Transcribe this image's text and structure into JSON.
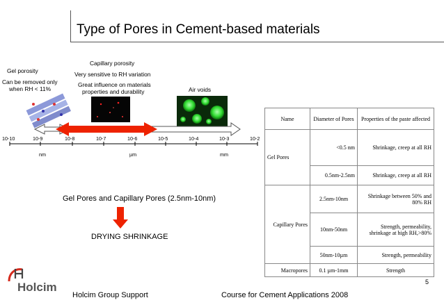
{
  "slide": {
    "title": "Type of Pores in Cement-based materials",
    "page_number": "5"
  },
  "diagram": {
    "gel": {
      "title": "Gel porosity",
      "line1": "Can be removed only",
      "line2": "when RH < 11%"
    },
    "capillary": {
      "title": "Capillary porosity",
      "line1": "Very sensitive to RH variation",
      "line2": "Great influence on materials",
      "line3": "properties and durability"
    },
    "air": {
      "title": "Air voids"
    },
    "ticks": [
      "10-10",
      "10-9",
      "10-8",
      "10-7",
      "10-6",
      "10-5",
      "10-4",
      "10-3",
      "10-2"
    ],
    "units": {
      "nm": "nm",
      "um": "µm",
      "mm": "mm"
    }
  },
  "text": {
    "range": "Gel Pores and Capillary Pores (2.5nm-10nm)",
    "effect": "DRYING SHRINKAGE"
  },
  "table": {
    "headers": [
      "Name",
      "Diameter of Pores",
      "Properties of the paste affected"
    ],
    "gel_name": "Gel Pores",
    "capillary_name": "Capillary Pores",
    "macro_name": "Macropores",
    "rows": [
      {
        "diameter": "<0.5 nm",
        "properties": "Shrinkage, creep at all RH"
      },
      {
        "diameter": "0.5nm-2.5nm",
        "properties": "Shrinkage, creep at all RH"
      },
      {
        "diameter": "2.5nm-10nm",
        "properties": "Shrinkage between 50% and 80% RH"
      },
      {
        "diameter": "10nm-50nm",
        "properties": "Strength, permeability, shrinkage at high RH,>80%"
      },
      {
        "diameter": "50nm-10µm",
        "properties": "Strength, permeability"
      },
      {
        "diameter": "0.1 µm-1mm",
        "properties": "Strength"
      }
    ]
  },
  "footer": {
    "logo": "Holcim",
    "left": "Holcim Group Support",
    "right": "Course for Cement Applications 2008"
  }
}
